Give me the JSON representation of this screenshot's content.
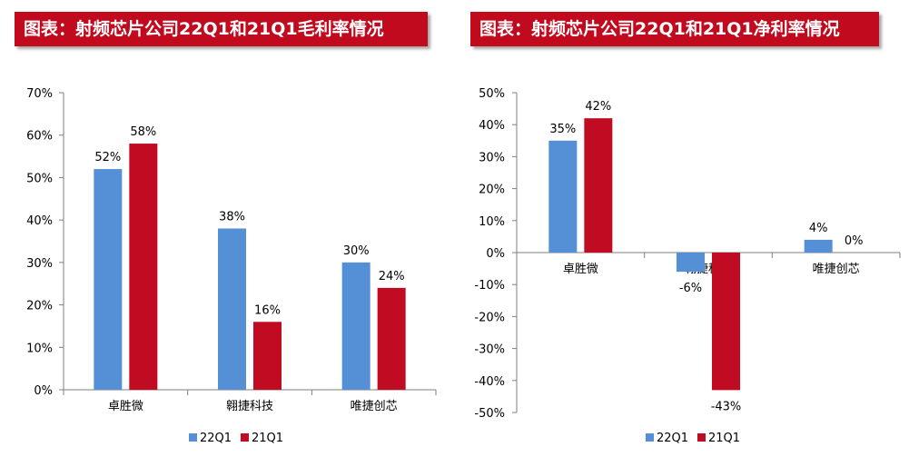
{
  "colors": {
    "title_bg": "#c20a1e",
    "series_22q1": "#5590d6",
    "series_21q1": "#c00b23"
  },
  "chart_data": [
    {
      "type": "bar",
      "title": "图表：射频芯片公司22Q1和21Q1毛利率情况",
      "categories": [
        "卓胜微",
        "翱捷科技",
        "唯捷创芯"
      ],
      "series": [
        {
          "name": "22Q1",
          "values": [
            52,
            38,
            30
          ],
          "labels": [
            "52%",
            "38%",
            "30%"
          ]
        },
        {
          "name": "21Q1",
          "values": [
            58,
            16,
            24
          ],
          "labels": [
            "58%",
            "16%",
            "24%"
          ]
        }
      ],
      "ylim": [
        0,
        70
      ],
      "yticks": [
        "0%",
        "10%",
        "20%",
        "30%",
        "40%",
        "50%",
        "60%",
        "70%"
      ],
      "xlabel": "",
      "ylabel": "",
      "grid": false,
      "legend": "bottom"
    },
    {
      "type": "bar",
      "title": "图表：射频芯片公司22Q1和21Q1净利率情况",
      "categories": [
        "卓胜微",
        "翱捷科技",
        "唯捷创芯"
      ],
      "series": [
        {
          "name": "22Q1",
          "values": [
            35,
            -6,
            4
          ],
          "labels": [
            "35%",
            "-6%",
            "4%"
          ]
        },
        {
          "name": "21Q1",
          "values": [
            42,
            -43,
            0
          ],
          "labels": [
            "42%",
            "-43%",
            "0%"
          ]
        }
      ],
      "ylim": [
        -50,
        50
      ],
      "yticks": [
        "-50%",
        "-40%",
        "-30%",
        "-20%",
        "-10%",
        "0%",
        "10%",
        "20%",
        "30%",
        "40%",
        "50%"
      ],
      "xlabel": "",
      "ylabel": "",
      "grid": false,
      "legend": "bottom"
    }
  ]
}
